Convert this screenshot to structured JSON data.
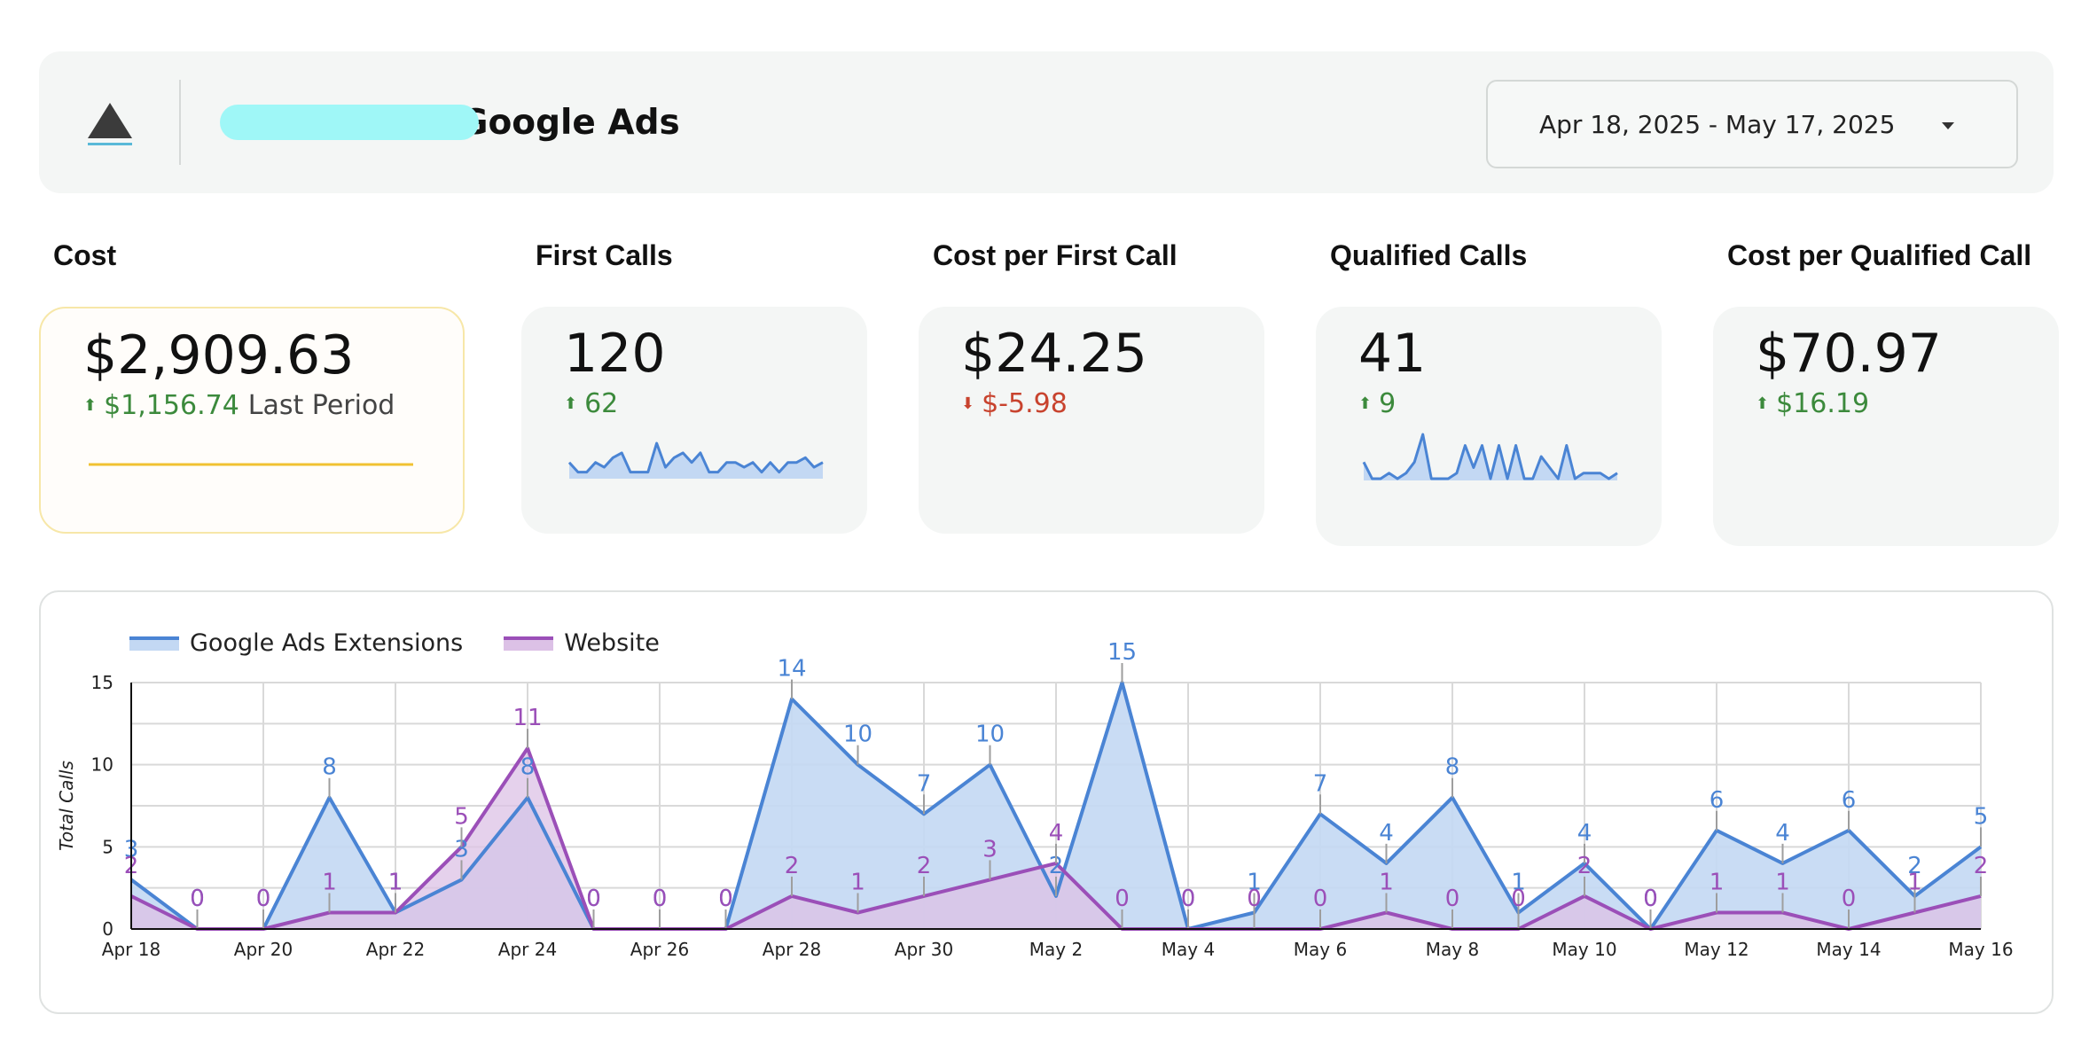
{
  "header": {
    "title": "• Google Ads",
    "date_range": "Apr 18, 2025 - May 17, 2025",
    "colors": {
      "logo": "#3b3b3b",
      "logo_underline": "#59b9d8",
      "redaction": "#9ff7f7"
    }
  },
  "kpis": [
    {
      "label": "Cost",
      "value": "$2,909.63",
      "delta": "$1,156.74",
      "delta_suffix": "Last Period",
      "direction": "up",
      "selected": true
    },
    {
      "label": "First Calls",
      "value": "120",
      "delta": "62",
      "delta_suffix": "",
      "direction": "up",
      "selected": false
    },
    {
      "label": "Cost per First Call",
      "value": "$24.25",
      "delta": "$-5.98",
      "delta_suffix": "",
      "direction": "down",
      "selected": false
    },
    {
      "label": "Qualified Calls",
      "value": "41",
      "delta": "9",
      "delta_suffix": "",
      "direction": "up",
      "selected": false
    },
    {
      "label": "Cost per Qualified Call",
      "value": "$70.97",
      "delta": "$16.19",
      "delta_suffix": "",
      "direction": "up",
      "selected": false
    }
  ],
  "sparklines": {
    "first_calls": [
      3,
      1,
      1,
      3,
      2,
      4,
      5,
      1,
      1,
      1,
      7,
      2,
      4,
      5,
      3,
      5,
      1,
      1,
      3,
      3,
      2,
      3,
      1,
      3,
      1,
      3,
      3,
      4,
      2,
      3
    ],
    "qualified_calls": [
      3,
      0,
      0,
      1,
      0,
      1,
      3,
      8,
      0,
      0,
      0,
      1,
      6,
      2,
      6,
      0,
      6,
      0,
      6,
      0,
      0,
      4,
      2,
      0,
      6,
      0,
      1,
      1,
      1,
      0,
      1
    ]
  },
  "colors": {
    "positive": "#3c8a3c",
    "negative": "#c8432e",
    "series_blue": "#4a84d4",
    "series_blue_fill": "#c3d8f3",
    "series_purple": "#9b4fb8",
    "series_purple_fill": "#dcc1e6",
    "cost_spark": "#f1c232"
  },
  "chart_data": {
    "type": "area",
    "ylabel": "Total Calls",
    "ylim": [
      0,
      15
    ],
    "yticks": [
      0,
      5,
      10,
      15
    ],
    "grid": true,
    "legend_position": "top-left",
    "x": [
      "Apr 18",
      "Apr 19",
      "Apr 20",
      "Apr 21",
      "Apr 22",
      "Apr 23",
      "Apr 24",
      "Apr 25",
      "Apr 26",
      "Apr 27",
      "Apr 28",
      "Apr 29",
      "Apr 30",
      "May 1",
      "May 2",
      "May 3",
      "May 4",
      "May 5",
      "May 6",
      "May 7",
      "May 8",
      "May 9",
      "May 10",
      "May 11",
      "May 12",
      "May 13",
      "May 14",
      "May 15",
      "May 16"
    ],
    "xtick_labels": [
      "Apr 18",
      "Apr 20",
      "Apr 22",
      "Apr 24",
      "Apr 26",
      "Apr 28",
      "Apr 30",
      "May 2",
      "May 4",
      "May 6",
      "May 8",
      "May 10",
      "May 12",
      "May 14",
      "May 16"
    ],
    "series": [
      {
        "name": "Google Ads Extensions",
        "values": [
          3,
          0,
          0,
          8,
          1,
          3,
          8,
          0,
          0,
          0,
          14,
          10,
          7,
          10,
          2,
          15,
          0,
          1,
          7,
          4,
          8,
          1,
          4,
          0,
          6,
          4,
          6,
          2,
          5
        ]
      },
      {
        "name": "Website",
        "values": [
          2,
          0,
          0,
          1,
          1,
          5,
          11,
          0,
          0,
          0,
          2,
          1,
          2,
          3,
          4,
          0,
          0,
          0,
          0,
          1,
          0,
          0,
          2,
          0,
          1,
          1,
          0,
          1,
          2
        ]
      }
    ]
  }
}
